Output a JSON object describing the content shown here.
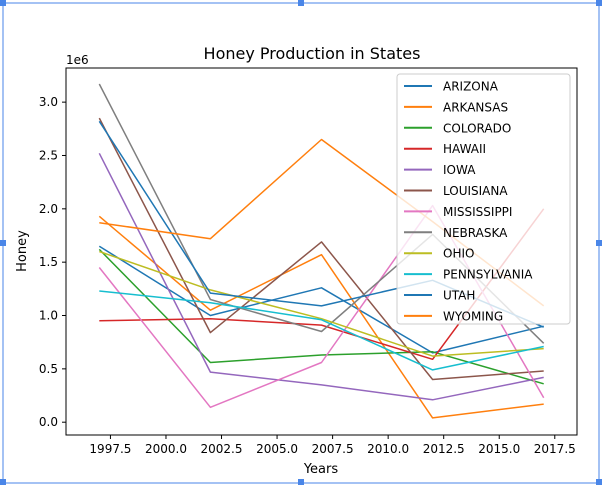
{
  "chart_data": {
    "type": "line",
    "title": "Honey Production in States",
    "xlabel": "Years",
    "ylabel": "Honey",
    "y_offset_label": "1e6",
    "xlim": [
      1995.5,
      2018.5
    ],
    "ylim": [
      -0.12,
      3.32
    ],
    "x_ticks": [
      1997.5,
      2000.0,
      2002.5,
      2005.0,
      2007.5,
      2010.0,
      2012.5,
      2015.0,
      2017.5
    ],
    "x_tick_labels": [
      "1997.5",
      "2000.0",
      "2002.5",
      "2005.0",
      "2007.5",
      "2010.0",
      "2012.5",
      "2015.0",
      "2017.5"
    ],
    "y_ticks": [
      0.0,
      0.5,
      1.0,
      1.5,
      2.0,
      2.5,
      3.0
    ],
    "y_tick_labels": [
      "0.0",
      "0.5",
      "1.0",
      "1.5",
      "2.0",
      "2.5",
      "3.0"
    ],
    "legend_position": "top-right",
    "grid": false,
    "x": [
      1997,
      2002,
      2007,
      2012,
      2017
    ],
    "series": [
      {
        "name": "ARIZONA",
        "color": "#1f77b4",
        "values": [
          1.65,
          1.0,
          1.26,
          0.65,
          0.9
        ]
      },
      {
        "name": "ARKANSAS",
        "color": "#ff7f0e",
        "values": [
          1.93,
          1.05,
          1.57,
          0.04,
          0.17
        ]
      },
      {
        "name": "COLORADO",
        "color": "#2ca02c",
        "values": [
          1.62,
          0.56,
          0.63,
          0.66,
          0.36
        ]
      },
      {
        "name": "HAWAII",
        "color": "#d62728",
        "values": [
          0.95,
          0.97,
          0.91,
          0.59,
          2.0
        ]
      },
      {
        "name": "IOWA",
        "color": "#9467bd",
        "values": [
          2.52,
          0.47,
          0.35,
          0.21,
          0.42
        ]
      },
      {
        "name": "LOUISIANA",
        "color": "#8c564b",
        "values": [
          2.85,
          0.84,
          1.69,
          0.4,
          0.48
        ]
      },
      {
        "name": "MISSISSIPPI",
        "color": "#e377c2",
        "values": [
          1.45,
          0.14,
          0.56,
          2.03,
          0.23
        ]
      },
      {
        "name": "NEBRASKA",
        "color": "#7f7f7f",
        "values": [
          3.17,
          1.15,
          0.85,
          1.76,
          0.74
        ]
      },
      {
        "name": "OHIO",
        "color": "#bcbd22",
        "values": [
          1.6,
          1.24,
          0.97,
          0.62,
          0.69
        ]
      },
      {
        "name": "PENNSYLVANIA",
        "color": "#17becf",
        "values": [
          1.23,
          1.12,
          0.96,
          0.49,
          0.71
        ]
      },
      {
        "name": "UTAH",
        "color": "#1f77b4",
        "values": [
          2.82,
          1.21,
          1.09,
          1.33,
          0.89
        ]
      },
      {
        "name": "WYOMING",
        "color": "#ff7f0e",
        "values": [
          1.87,
          1.72,
          2.65,
          1.88,
          1.09
        ]
      }
    ]
  }
}
